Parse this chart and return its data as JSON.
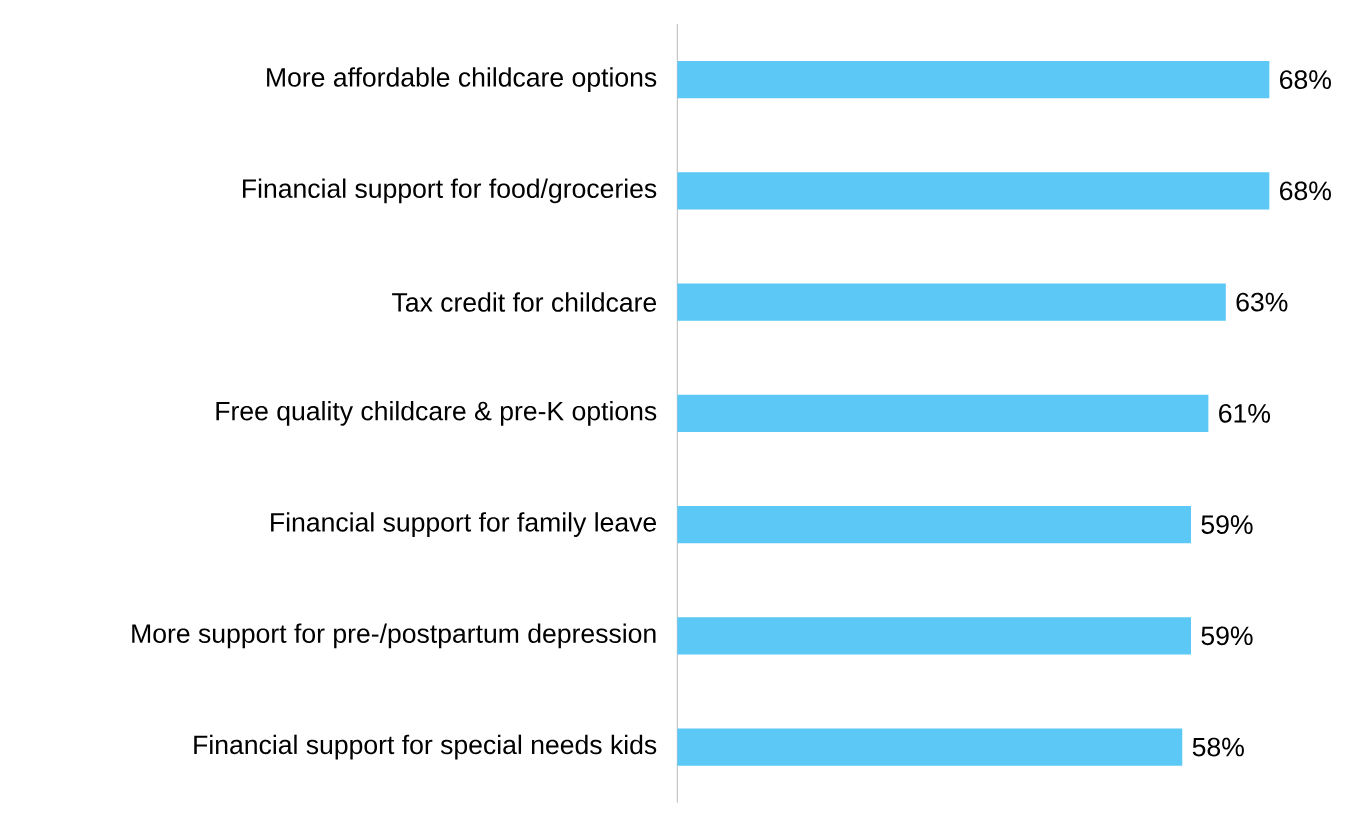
{
  "chart_data": {
    "type": "bar",
    "orientation": "horizontal",
    "categories": [
      "More affordable childcare options",
      "Financial support for food/groceries",
      "Tax credit for childcare",
      "Free quality childcare & pre-K options",
      "Financial support for family leave",
      "More support for pre-/postpartum depression",
      "Financial support for special needs kids"
    ],
    "values": [
      68,
      68,
      63,
      61,
      59,
      59,
      58
    ],
    "value_labels": [
      "68%",
      "68%",
      "63%",
      "61%",
      "59%",
      "59%",
      "58%"
    ],
    "color": "#5bc8f5"
  }
}
